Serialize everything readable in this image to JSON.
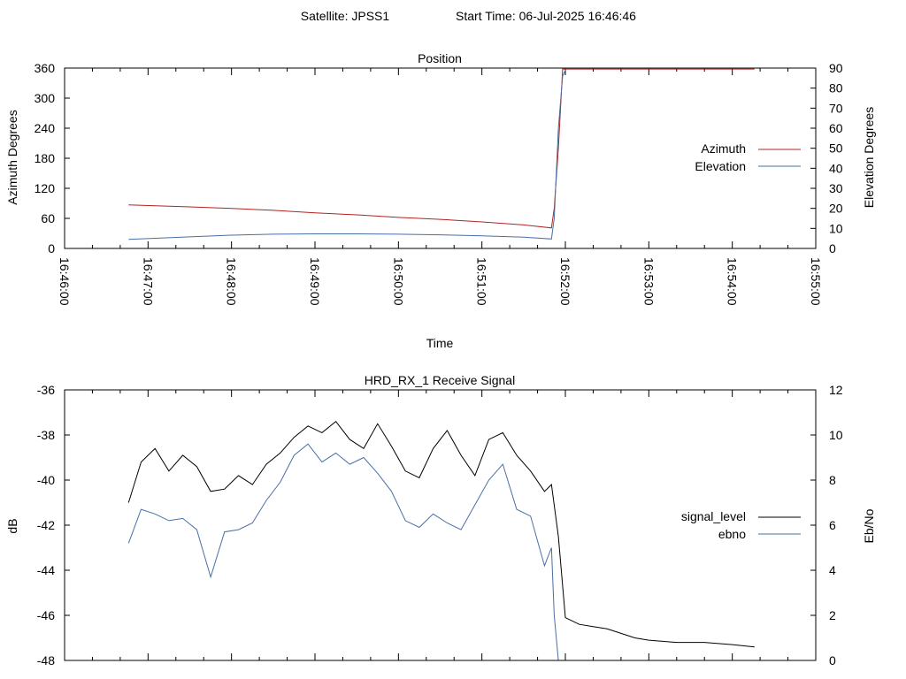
{
  "header": {
    "satellite": "Satellite: JPSS1",
    "start_time": "Start Time: 06-Jul-2025 16:46:46"
  },
  "chart_data": [
    {
      "type": "line",
      "title": "Position",
      "xlabel": "Time",
      "ylabel": "Azimuth Degrees",
      "y2label": "Elevation Degrees",
      "ylim": [
        0,
        360
      ],
      "y2lim": [
        0,
        90
      ],
      "yticks": [
        "0",
        "60",
        "120",
        "180",
        "240",
        "300",
        "360"
      ],
      "y2ticks": [
        "0",
        "10",
        "20",
        "30",
        "40",
        "50",
        "60",
        "70",
        "80",
        "90"
      ],
      "xlim": [
        "16:46:00",
        "16:55:00"
      ],
      "xticks": [
        "16:46:00",
        "16:47:00",
        "16:48:00",
        "16:49:00",
        "16:50:00",
        "16:51:00",
        "16:52:00",
        "16:53:00",
        "16:54:00",
        "16:55:00"
      ],
      "grid": false,
      "legend_position": "right",
      "series": [
        {
          "name": "Azimuth",
          "axis": "y",
          "color": "#b22222",
          "x": [
            "16:46:46",
            "16:47:30",
            "16:48:00",
            "16:48:30",
            "16:49:00",
            "16:49:30",
            "16:50:00",
            "16:50:30",
            "16:51:00",
            "16:51:30",
            "16:51:50",
            "16:51:52",
            "16:51:55",
            "16:51:58",
            "16:52:30",
            "16:53:00",
            "16:53:30",
            "16:54:00",
            "16:54:16"
          ],
          "values": [
            87,
            83,
            80,
            76,
            71,
            67,
            62,
            58,
            53,
            47,
            41,
            80,
            200,
            358,
            358,
            358,
            358,
            358,
            358
          ]
        },
        {
          "name": "Elevation",
          "axis": "y2",
          "color": "#4a6fa5",
          "x": [
            "16:46:46",
            "16:47:30",
            "16:48:00",
            "16:48:30",
            "16:49:00",
            "16:49:30",
            "16:50:00",
            "16:50:30",
            "16:51:00",
            "16:51:30",
            "16:51:50",
            "16:51:52",
            "16:51:55",
            "16:51:58",
            "16:52:00"
          ],
          "values": [
            4.5,
            5.8,
            6.6,
            7.1,
            7.3,
            7.3,
            7.1,
            6.8,
            6.3,
            5.6,
            4.7,
            15,
            60,
            86,
            89
          ]
        }
      ]
    },
    {
      "type": "line",
      "title": "HRD_RX_1 Receive Signal",
      "ylabel": "dB",
      "y2label": "Eb/No",
      "ylim": [
        -48,
        -36
      ],
      "y2lim": [
        0,
        12
      ],
      "yticks": [
        "-48",
        "-46",
        "-44",
        "-42",
        "-40",
        "-38",
        "-36"
      ],
      "y2ticks": [
        "0",
        "2",
        "4",
        "6",
        "8",
        "10",
        "12"
      ],
      "xlim": [
        "16:46:00",
        "16:55:00"
      ],
      "grid": false,
      "legend_position": "right",
      "series": [
        {
          "name": "signal_level",
          "axis": "y",
          "color": "#000000",
          "x": [
            "16:46:46",
            "16:46:55",
            "16:47:05",
            "16:47:15",
            "16:47:25",
            "16:47:35",
            "16:47:45",
            "16:47:55",
            "16:48:05",
            "16:48:15",
            "16:48:25",
            "16:48:35",
            "16:48:45",
            "16:48:55",
            "16:49:05",
            "16:49:15",
            "16:49:25",
            "16:49:35",
            "16:49:45",
            "16:49:55",
            "16:50:05",
            "16:50:15",
            "16:50:25",
            "16:50:35",
            "16:50:45",
            "16:50:55",
            "16:51:05",
            "16:51:15",
            "16:51:25",
            "16:51:35",
            "16:51:45",
            "16:51:50",
            "16:51:55",
            "16:52:00",
            "16:52:10",
            "16:52:20",
            "16:52:30",
            "16:52:40",
            "16:52:50",
            "16:53:00",
            "16:53:20",
            "16:53:40",
            "16:54:00",
            "16:54:16"
          ],
          "values": [
            -41.0,
            -39.2,
            -38.6,
            -39.6,
            -38.9,
            -39.4,
            -40.5,
            -40.4,
            -39.8,
            -40.2,
            -39.3,
            -38.8,
            -38.1,
            -37.6,
            -37.9,
            -37.4,
            -38.2,
            -38.6,
            -37.5,
            -38.5,
            -39.6,
            -39.9,
            -38.6,
            -37.8,
            -38.9,
            -39.8,
            -38.2,
            -37.9,
            -38.9,
            -39.6,
            -40.5,
            -40.2,
            -42.5,
            -46.1,
            -46.4,
            -46.5,
            -46.6,
            -46.8,
            -47.0,
            -47.1,
            -47.2,
            -47.2,
            -47.3,
            -47.4
          ]
        },
        {
          "name": "ebno",
          "axis": "y2",
          "color": "#4a6fa5",
          "x": [
            "16:46:46",
            "16:46:55",
            "16:47:05",
            "16:47:15",
            "16:47:25",
            "16:47:35",
            "16:47:45",
            "16:47:55",
            "16:48:05",
            "16:48:15",
            "16:48:25",
            "16:48:35",
            "16:48:45",
            "16:48:55",
            "16:49:05",
            "16:49:15",
            "16:49:25",
            "16:49:35",
            "16:49:45",
            "16:49:55",
            "16:50:05",
            "16:50:15",
            "16:50:25",
            "16:50:35",
            "16:50:45",
            "16:50:55",
            "16:51:05",
            "16:51:15",
            "16:51:25",
            "16:51:35",
            "16:51:45",
            "16:51:50",
            "16:51:52",
            "16:51:55"
          ],
          "values": [
            5.2,
            6.7,
            6.5,
            6.2,
            6.3,
            5.8,
            3.7,
            5.7,
            5.8,
            6.1,
            7.1,
            7.9,
            9.1,
            9.6,
            8.8,
            9.2,
            8.7,
            9.0,
            8.3,
            7.5,
            6.2,
            5.9,
            6.5,
            6.1,
            5.8,
            6.9,
            8.0,
            8.7,
            6.7,
            6.4,
            4.2,
            5.0,
            2.0,
            0.0
          ]
        }
      ]
    }
  ]
}
